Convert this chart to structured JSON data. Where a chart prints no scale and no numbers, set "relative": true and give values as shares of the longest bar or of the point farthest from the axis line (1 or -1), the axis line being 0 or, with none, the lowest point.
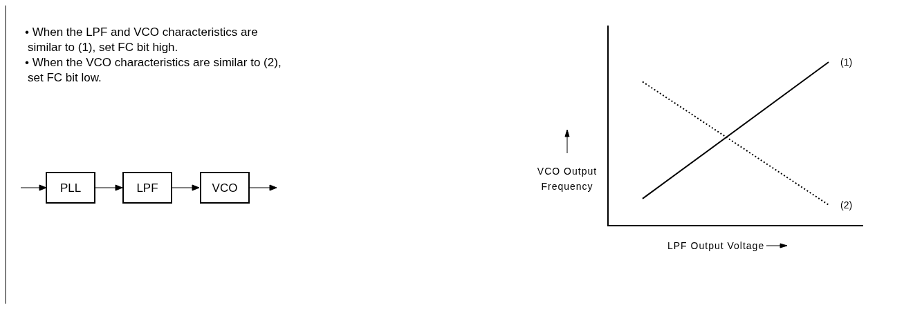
{
  "chart_data": {
    "type": "line",
    "relative": true,
    "xlabel": "LPF Output Voltage",
    "ylabel": "VCO Output Frequency",
    "categories": [
      null,
      null
    ],
    "series": [
      {
        "name": "(1)",
        "color": "#000000",
        "line_style": "solid",
        "values": [
          0.165,
          1
        ]
      },
      {
        "name": "(2)",
        "color": "#000000",
        "line_style": "dotted",
        "values": [
          0.88,
          0.127
        ]
      }
    ],
    "annotations": [
      "• When the LPF and VCO characteristics are similar to (1), set FC bit high.",
      "• When the VCO characteristics are similar to (2), set FC bit low.",
      "PLL",
      "LPF",
      "VCO"
    ]
  }
}
